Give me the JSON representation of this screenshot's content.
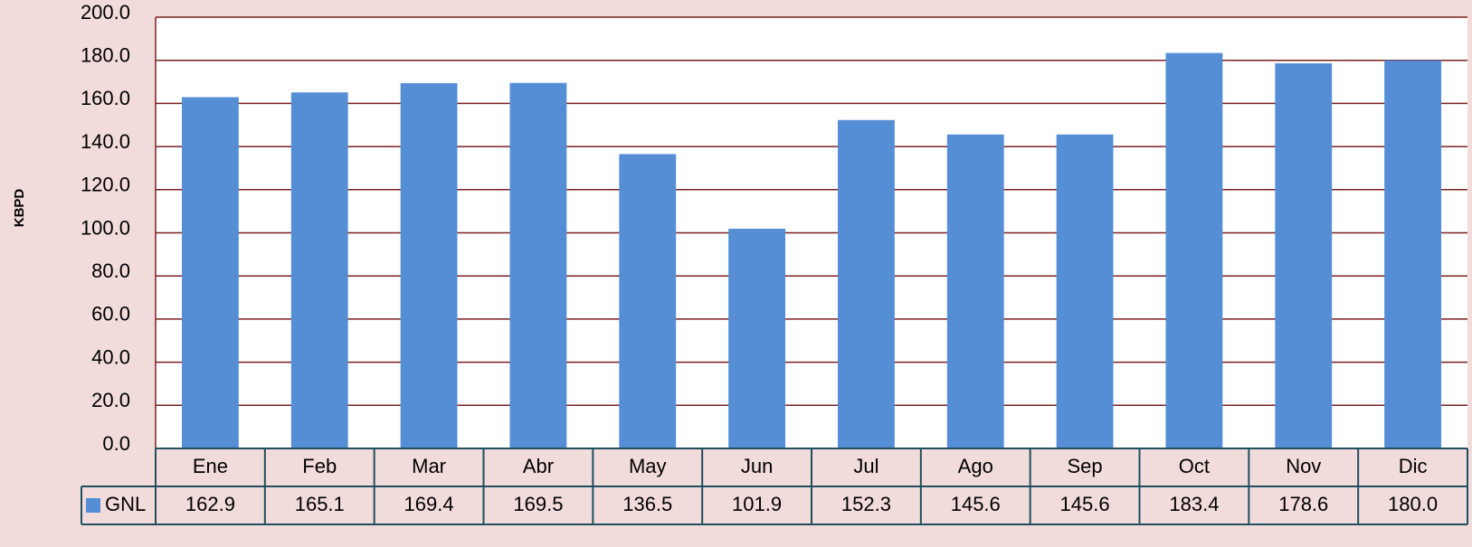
{
  "chart_data": {
    "type": "bar",
    "y_label": "KBPD",
    "categories": [
      "Ene",
      "Feb",
      "Mar",
      "Abr",
      "May",
      "Jun",
      "Jul",
      "Ago",
      "Sep",
      "Oct",
      "Nov",
      "Dic"
    ],
    "series": [
      {
        "name": "GNL",
        "color": "#558ed5",
        "values": [
          162.9,
          165.1,
          169.4,
          169.5,
          136.5,
          101.9,
          152.3,
          145.6,
          145.6,
          183.4,
          178.6,
          180.0
        ],
        "value_labels": [
          "162.9",
          "165.1",
          "169.4",
          "169.5",
          "136.5",
          "101.9",
          "152.3",
          "145.6",
          "145.6",
          "183.4",
          "178.6",
          "180.0"
        ]
      }
    ],
    "ylim": [
      0,
      200
    ],
    "yticks": [
      {
        "value": 0,
        "label": "0.0"
      },
      {
        "value": 20,
        "label": "20.0"
      },
      {
        "value": 40,
        "label": "40.0"
      },
      {
        "value": 60,
        "label": "60.0"
      },
      {
        "value": 80,
        "label": "80.0"
      },
      {
        "value": 100,
        "label": "100.0"
      },
      {
        "value": 120,
        "label": "120.0"
      },
      {
        "value": 140,
        "label": "140.0"
      },
      {
        "value": 160,
        "label": "160.0"
      },
      {
        "value": 180,
        "label": "180.0"
      },
      {
        "value": 200,
        "label": "200.0"
      }
    ],
    "grid": true
  }
}
